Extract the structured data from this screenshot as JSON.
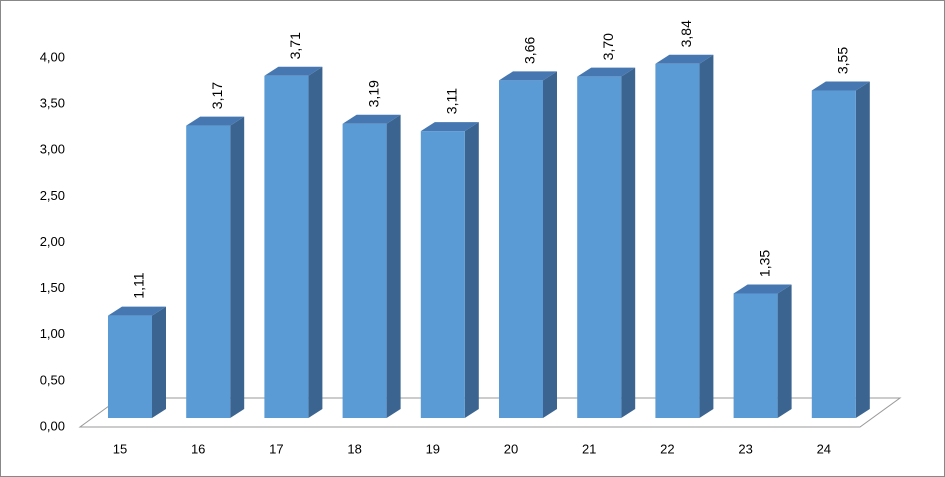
{
  "chart_data": {
    "type": "bar3d",
    "categories": [
      "15",
      "16",
      "17",
      "18",
      "19",
      "20",
      "21",
      "22",
      "23",
      "24"
    ],
    "values": [
      1.11,
      3.17,
      3.71,
      3.19,
      3.11,
      3.66,
      3.7,
      3.84,
      1.35,
      3.55
    ],
    "value_labels": [
      "1,11",
      "3,17",
      "3,71",
      "3,19",
      "3,11",
      "3,66",
      "3,70",
      "3,84",
      "1,35",
      "3,55"
    ],
    "color": "#5b9bd5",
    "ylim": [
      0,
      4
    ],
    "yticks": [
      {
        "value": 0,
        "label": "0,00"
      },
      {
        "value": 0.5,
        "label": "0,50"
      },
      {
        "value": 1,
        "label": "1,00"
      },
      {
        "value": 1.5,
        "label": "1,50"
      },
      {
        "value": 2,
        "label": "2,00"
      },
      {
        "value": 2.5,
        "label": "2,50"
      },
      {
        "value": 3,
        "label": "3,00"
      },
      {
        "value": 3.5,
        "label": "3,50"
      },
      {
        "value": 4,
        "label": "4,00"
      }
    ],
    "grid": false
  }
}
